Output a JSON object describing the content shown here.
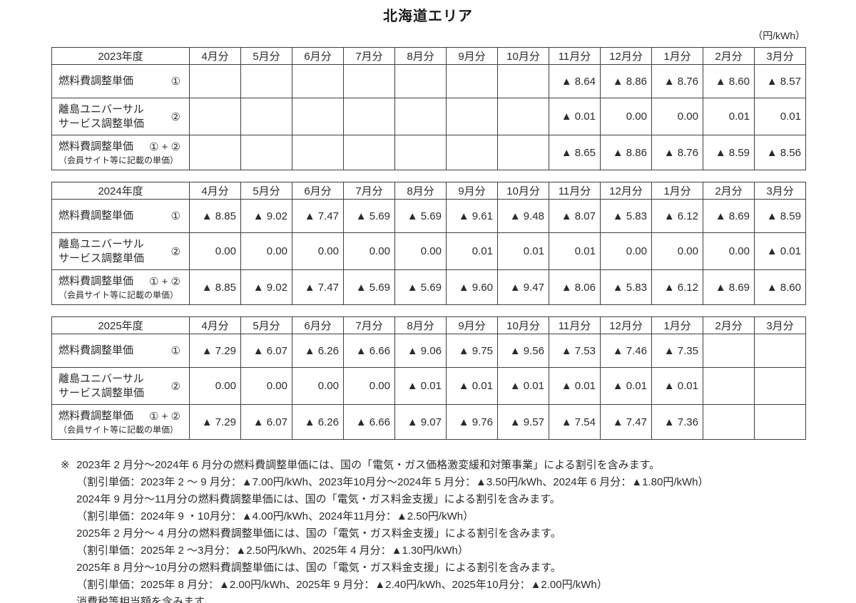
{
  "page": {
    "title": "北海道エリア",
    "unit_label": "（円/kWh）",
    "footnote_marker": "※"
  },
  "tables": [
    {
      "year_label": "2023年度",
      "months": [
        "4月分",
        "5月分",
        "6月分",
        "7月分",
        "8月分",
        "9月分",
        "10月分",
        "11月分",
        "12月分",
        "1月分",
        "2月分",
        "3月分"
      ],
      "rows": [
        {
          "label_lines": [
            "燃料費調整単価"
          ],
          "mark": "①",
          "sub": "",
          "values": [
            "",
            "",
            "",
            "",
            "",
            "",
            "",
            "▲ 8.64",
            "▲ 8.86",
            "▲ 8.76",
            "▲ 8.60",
            "▲ 8.57"
          ]
        },
        {
          "label_lines": [
            "離島ユニバーサル",
            "サービス調整単価"
          ],
          "mark": "②",
          "sub": "",
          "values": [
            "",
            "",
            "",
            "",
            "",
            "",
            "",
            "▲ 0.01",
            "0.00",
            "0.00",
            "0.01",
            "0.01"
          ]
        },
        {
          "label_lines": [
            "燃料費調整単価"
          ],
          "mark": "① + ②",
          "sub": "（会員サイト等に記載の単価）",
          "values": [
            "",
            "",
            "",
            "",
            "",
            "",
            "",
            "▲ 8.65",
            "▲ 8.86",
            "▲ 8.76",
            "▲ 8.59",
            "▲ 8.56"
          ]
        }
      ]
    },
    {
      "year_label": "2024年度",
      "months": [
        "4月分",
        "5月分",
        "6月分",
        "7月分",
        "8月分",
        "9月分",
        "10月分",
        "11月分",
        "12月分",
        "1月分",
        "2月分",
        "3月分"
      ],
      "rows": [
        {
          "label_lines": [
            "燃料費調整単価"
          ],
          "mark": "①",
          "sub": "",
          "values": [
            "▲ 8.85",
            "▲ 9.02",
            "▲ 7.47",
            "▲ 5.69",
            "▲ 5.69",
            "▲ 9.61",
            "▲ 9.48",
            "▲ 8.07",
            "▲ 5.83",
            "▲ 6.12",
            "▲ 8.69",
            "▲ 8.59"
          ]
        },
        {
          "label_lines": [
            "離島ユニバーサル",
            "サービス調整単価"
          ],
          "mark": "②",
          "sub": "",
          "values": [
            "0.00",
            "0.00",
            "0.00",
            "0.00",
            "0.00",
            "0.01",
            "0.01",
            "0.01",
            "0.00",
            "0.00",
            "0.00",
            "▲ 0.01"
          ]
        },
        {
          "label_lines": [
            "燃料費調整単価"
          ],
          "mark": "① + ②",
          "sub": "（会員サイト等に記載の単価）",
          "values": [
            "▲ 8.85",
            "▲ 9.02",
            "▲ 7.47",
            "▲ 5.69",
            "▲ 5.69",
            "▲ 9.60",
            "▲ 9.47",
            "▲ 8.06",
            "▲ 5.83",
            "▲ 6.12",
            "▲ 8.69",
            "▲ 8.60"
          ]
        }
      ]
    },
    {
      "year_label": "2025年度",
      "months": [
        "4月分",
        "5月分",
        "6月分",
        "7月分",
        "8月分",
        "9月分",
        "10月分",
        "11月分",
        "12月分",
        "1月分",
        "2月分",
        "3月分"
      ],
      "rows": [
        {
          "label_lines": [
            "燃料費調整単価"
          ],
          "mark": "①",
          "sub": "",
          "values": [
            "▲ 7.29",
            "▲ 6.07",
            "▲ 6.26",
            "▲ 6.66",
            "▲ 9.06",
            "▲ 9.75",
            "▲ 9.56",
            "▲ 7.53",
            "▲ 7.46",
            "▲ 7.35",
            "",
            ""
          ]
        },
        {
          "label_lines": [
            "離島ユニバーサル",
            "サービス調整単価"
          ],
          "mark": "②",
          "sub": "",
          "values": [
            "0.00",
            "0.00",
            "0.00",
            "0.00",
            "▲ 0.01",
            "▲ 0.01",
            "▲ 0.01",
            "▲ 0.01",
            "▲ 0.01",
            "▲ 0.01",
            "",
            ""
          ]
        },
        {
          "label_lines": [
            "燃料費調整単価"
          ],
          "mark": "① + ②",
          "sub": "（会員サイト等に記載の単価）",
          "values": [
            "▲ 7.29",
            "▲ 6.07",
            "▲ 6.26",
            "▲ 6.66",
            "▲ 9.07",
            "▲ 9.76",
            "▲ 9.57",
            "▲ 7.54",
            "▲ 7.47",
            "▲ 7.36",
            "",
            ""
          ]
        }
      ]
    }
  ],
  "footnotes": [
    "2023年 2 月分～2024年 6 月分の燃料費調整単価には、国の「電気・ガス価格激変緩和対策事業」による割引を含みます。",
    "（割引単価：2023年 2 ～ 9 月分：▲7.00円/kWh、2023年10月分～2024年 5 月分：▲3.50円/kWh、2024年 6 月分：▲1.80円/kWh）",
    "2024年 9 月分～11月分の燃料費調整単価には、国の「電気・ガス料金支援」による割引を含みます。",
    "（割引単価：2024年 9 ・10月分：▲4.00円/kWh、2024年11月分：▲2.50円/kWh）",
    "2025年 2 月分～ 4 月分の燃料費調整単価には、国の「電気・ガス料金支援」による割引を含みます。",
    "（割引単価：2025年 2 ～3月分：▲2.50円/kWh、2025年 4 月分：▲1.30円/kWh）",
    "2025年 8 月分～10月分の燃料費調整単価には、国の「電気・ガス料金支援」による割引を含みます。",
    "（割引単価：2025年 8 月分：▲2.00円/kWh、2025年 9 月分：▲2.40円/kWh、2025年10月分：▲2.00円/kWh）",
    "消費税等相当額を含みます。"
  ]
}
